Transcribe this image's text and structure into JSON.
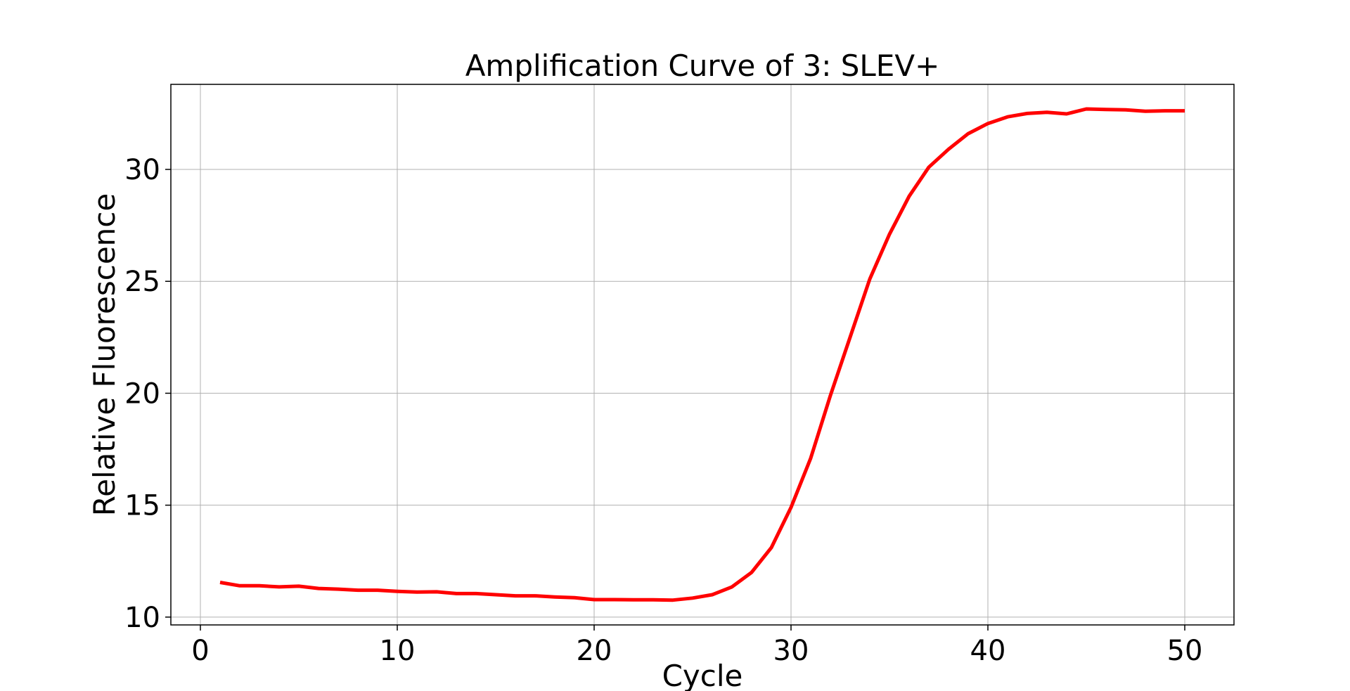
{
  "chart_data": {
    "type": "line",
    "title": "Amplification Curve of 3: SLEV+",
    "xlabel": "Cycle",
    "ylabel": "Relative Fluorescence",
    "xlim": [
      -1.5,
      52.5
    ],
    "ylim": [
      9.65,
      33.8
    ],
    "xticks": [
      0,
      10,
      20,
      30,
      40,
      50
    ],
    "yticks": [
      10,
      15,
      20,
      25,
      30
    ],
    "grid": true,
    "legend": "none",
    "series": [
      {
        "color": "#ff0000",
        "x": [
          1,
          2,
          3,
          4,
          5,
          6,
          7,
          8,
          9,
          10,
          11,
          12,
          13,
          14,
          15,
          16,
          17,
          18,
          19,
          20,
          21,
          22,
          23,
          24,
          25,
          26,
          27,
          28,
          29,
          30,
          31,
          32,
          33,
          34,
          35,
          36,
          37,
          38,
          39,
          40,
          41,
          42,
          43,
          44,
          45,
          46,
          47,
          48,
          49,
          50
        ],
        "y": [
          11.55,
          11.4,
          11.4,
          11.35,
          11.38,
          11.28,
          11.25,
          11.2,
          11.2,
          11.15,
          11.12,
          11.13,
          11.05,
          11.05,
          11.0,
          10.95,
          10.95,
          10.9,
          10.87,
          10.78,
          10.78,
          10.77,
          10.77,
          10.76,
          10.85,
          11.0,
          11.35,
          12.0,
          13.1,
          14.9,
          17.1,
          19.9,
          22.5,
          25.1,
          27.1,
          28.8,
          30.1,
          30.9,
          31.6,
          32.05,
          32.35,
          32.5,
          32.55,
          32.48,
          32.7,
          32.68,
          32.66,
          32.6,
          32.62,
          32.62
        ]
      }
    ]
  }
}
